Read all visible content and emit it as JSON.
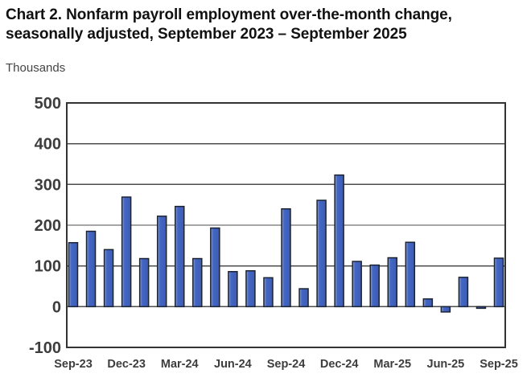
{
  "page": {
    "title_line1": "Chart 2. Nonfarm payroll employment over-the-month change,",
    "title_line2": "seasonally adjusted, September 2023 – September 2025",
    "units_label": "Thousands"
  },
  "chart_data": {
    "type": "bar",
    "title": "Chart 2. Nonfarm payroll employment over-the-month change, seasonally adjusted, September 2023 – September 2025",
    "xlabel": "",
    "ylabel": "Thousands",
    "ylim": [
      -100,
      500
    ],
    "yticks": [
      -100,
      0,
      100,
      200,
      300,
      400,
      500
    ],
    "grid": "horizontal",
    "legend": "none",
    "categories": [
      "Sep-23",
      "Oct-23",
      "Nov-23",
      "Dec-23",
      "Jan-24",
      "Feb-24",
      "Mar-24",
      "Apr-24",
      "May-24",
      "Jun-24",
      "Jul-24",
      "Aug-24",
      "Sep-24",
      "Oct-24",
      "Nov-24",
      "Dec-24",
      "Jan-25",
      "Feb-25",
      "Mar-25",
      "Apr-25",
      "May-25",
      "Jun-25",
      "Jul-25",
      "Aug-25",
      "Sep-25"
    ],
    "values": [
      157,
      185,
      140,
      269,
      118,
      222,
      246,
      118,
      193,
      86,
      88,
      71,
      240,
      44,
      261,
      323,
      111,
      102,
      120,
      158,
      19,
      -13,
      72,
      -4,
      119
    ],
    "xtick_labels": [
      "Sep-23",
      "Dec-23",
      "Mar-24",
      "Jun-24",
      "Sep-24",
      "Dec-24",
      "Mar-25",
      "Jun-25",
      "Sep-25"
    ],
    "xtick_every": 3,
    "colors": {
      "bar_fill": "#4467C4",
      "bar_fill_light": "#8FA6DD",
      "bar_fill_dark": "#3B5BB5",
      "bar_border": "#1C2333",
      "gridline": "#4d4d4d",
      "frame": "#333333",
      "tick_text": "#3d3d3d",
      "title_text": "#111111"
    }
  }
}
